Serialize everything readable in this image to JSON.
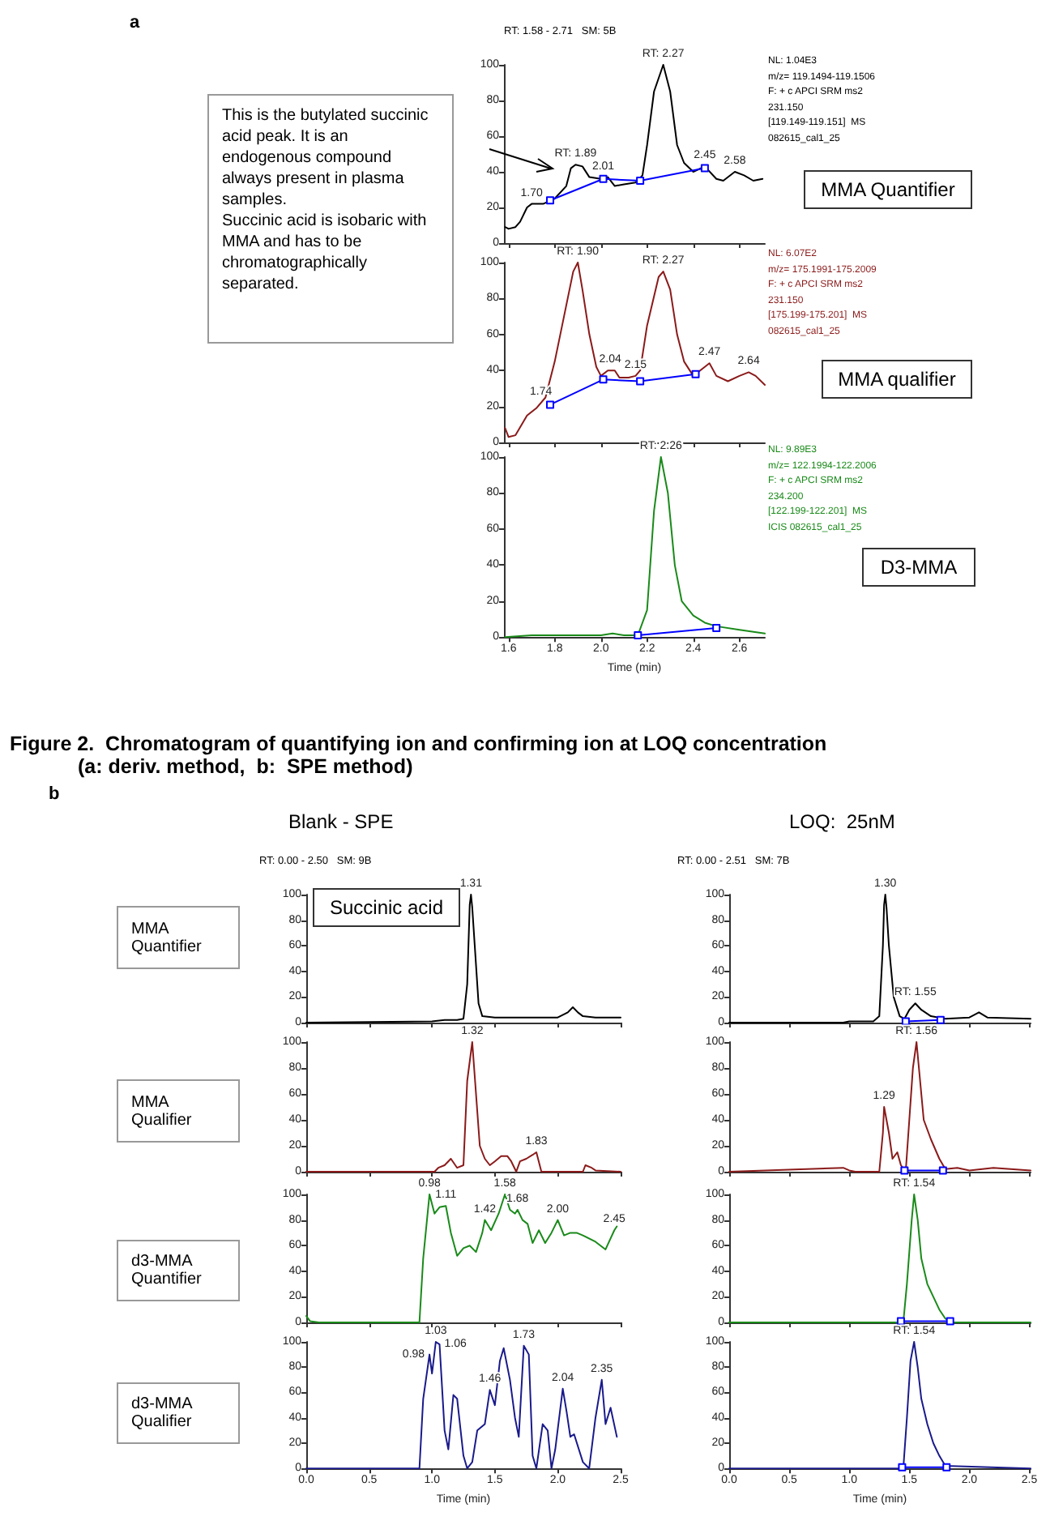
{
  "chart_data": [
    {
      "type": "line",
      "xlim": [
        1.58,
        2.71
      ],
      "xticks": [
        {
          "value": 1.6,
          "label": null
        },
        {
          "value": 1.8,
          "label": null
        },
        {
          "value": 2,
          "label": null
        },
        {
          "value": 2.2,
          "label": null
        },
        {
          "value": 2.4,
          "label": null
        },
        {
          "value": 2.6,
          "label": null
        }
      ],
      "ylim": [
        0,
        100
      ],
      "yticks": [
        0,
        20,
        40,
        60,
        80,
        100
      ],
      "tick_labels": "y",
      "series": [
        {
          "color": "#000000",
          "marker": "none",
          "x": [
            1.585,
            1.6,
            1.63,
            1.65,
            1.68,
            1.7,
            1.75,
            1.8,
            1.85,
            1.87,
            1.89,
            1.92,
            1.95,
            2.0,
            2.03,
            2.06,
            2.1,
            2.15,
            2.18,
            2.2,
            2.23,
            2.27,
            2.3,
            2.33,
            2.36,
            2.4,
            2.45,
            2.5,
            2.53,
            2.58,
            2.62,
            2.66,
            2.7
          ],
          "values": [
            9,
            8,
            9,
            12,
            20,
            22,
            22,
            25,
            32,
            42,
            44,
            43,
            37,
            36,
            37,
            32,
            33,
            34,
            38,
            55,
            85,
            100,
            85,
            55,
            45,
            40,
            43,
            36,
            35,
            40,
            38,
            35,
            36
          ]
        },
        {
          "color": "#0000ff",
          "marker": "square",
          "x": [
            1.78,
            2.01,
            2.17,
            2.45
          ],
          "values": [
            24,
            36,
            35,
            42
          ]
        }
      ],
      "annotations": [
        "a",
        "RT: 1.58 - 2.71   SM: 5B",
        "NL: 1.04E3\nm/z= 119.1494-119.1506\nF: + c APCI SRM ms2\n231.150\n[119.149-119.151]  MS\n082615_cal1_25",
        "MMA Quantifier",
        "This is the butylated succinic acid peak. It is an endogenous  compound always present in plasma samples.\nSuccinic acid is isobaric with MMA and has to be chromatographically separated.",
        {
          "text": "RT: 2.27",
          "x": 2.27,
          "y": 100
        },
        {
          "text": "RT: 1.89",
          "x": 1.89,
          "y": 44
        },
        {
          "text": "1.70",
          "x": 1.7,
          "y": 22
        },
        {
          "text": "2.01",
          "x": 2.01,
          "y": 37
        },
        {
          "text": "2.45",
          "x": 2.45,
          "y": 43
        },
        {
          "text": "2.58",
          "x": 2.58,
          "y": 40
        }
      ]
    },
    {
      "type": "line",
      "xlim": [
        1.58,
        2.71
      ],
      "xticks": [
        {
          "value": 1.6,
          "label": null
        },
        {
          "value": 1.8,
          "label": null
        },
        {
          "value": 2,
          "label": null
        },
        {
          "value": 2.2,
          "label": null
        },
        {
          "value": 2.4,
          "label": null
        },
        {
          "value": 2.6,
          "label": null
        }
      ],
      "ylim": [
        0,
        100
      ],
      "yticks": [
        0,
        20,
        40,
        60,
        80,
        100
      ],
      "tick_labels": "y",
      "series": [
        {
          "color": "#8b1a1a",
          "marker": "none",
          "x": [
            1.585,
            1.6,
            1.63,
            1.68,
            1.72,
            1.76,
            1.8,
            1.84,
            1.88,
            1.9,
            1.92,
            1.95,
            1.98,
            2.0,
            2.03,
            2.06,
            2.08,
            2.12,
            2.15,
            2.17,
            2.2,
            2.25,
            2.27,
            2.3,
            2.33,
            2.36,
            2.4,
            2.45,
            2.47,
            2.5,
            2.55,
            2.6,
            2.64,
            2.67,
            2.71
          ],
          "values": [
            8,
            3,
            4,
            15,
            19,
            25,
            45,
            70,
            95,
            100,
            85,
            60,
            42,
            37,
            40,
            40,
            36,
            36,
            37,
            40,
            65,
            92,
            95,
            85,
            60,
            45,
            37,
            42,
            44,
            37,
            34,
            37,
            39,
            37,
            32
          ]
        },
        {
          "color": "#0000ff",
          "marker": "square",
          "x": [
            1.78,
            2.01,
            2.17,
            2.41
          ],
          "values": [
            21,
            35,
            34,
            38
          ]
        }
      ],
      "annotations": [
        "NL: 6.07E2\nm/z= 175.1991-175.2009\nF: + c APCI SRM ms2\n231.150\n[175.199-175.201]  MS\n082615_cal1_25",
        "MMA qualifier",
        {
          "text": "RT: 1.90",
          "x": 1.9,
          "y": 100
        },
        {
          "text": "RT: 2.27",
          "x": 2.27,
          "y": 95
        },
        {
          "text": "1.74",
          "x": 1.74,
          "y": 22
        },
        {
          "text": "2.04",
          "x": 2.04,
          "y": 40
        },
        {
          "text": "2.15",
          "x": 2.15,
          "y": 37
        },
        {
          "text": "2.47",
          "x": 2.47,
          "y": 44
        },
        {
          "text": "2.64",
          "x": 2.64,
          "y": 39
        }
      ]
    },
    {
      "type": "line",
      "xlim": [
        1.58,
        2.71
      ],
      "xticks": [
        1.6,
        1.8,
        {
          "value": 2,
          "label": "2.0"
        },
        2.2,
        2.4,
        2.6
      ],
      "ylim": [
        0,
        100
      ],
      "yticks": [
        0,
        20,
        40,
        60,
        80,
        100
      ],
      "xlabel": "Time (min)",
      "series": [
        {
          "color": "#1a8a1a",
          "marker": "none",
          "x": [
            1.585,
            1.7,
            1.8,
            2.0,
            2.05,
            2.1,
            2.16,
            2.2,
            2.23,
            2.26,
            2.29,
            2.32,
            2.35,
            2.4,
            2.45,
            2.5,
            2.6,
            2.71
          ],
          "values": [
            0,
            1,
            1,
            1,
            2,
            1,
            1,
            15,
            70,
            100,
            80,
            40,
            20,
            12,
            8,
            6,
            4,
            2
          ]
        },
        {
          "color": "#0000ff",
          "marker": "square",
          "x": [
            2.16,
            2.5
          ],
          "values": [
            1,
            5
          ]
        }
      ],
      "annotations": [
        "NL: 9.89E3\nm/z= 122.1994-122.2006\nF: + c APCI SRM ms2\n234.200\n[122.199-122.201]  MS\nICIS 082615_cal1_25",
        "D3-MMA",
        {
          "text": "RT: 2.26",
          "x": 2.26,
          "y": 100
        }
      ]
    },
    {
      "type": "line",
      "xlim": [
        0,
        2.5
      ],
      "xticks": [
        {
          "value": 0,
          "label": null
        },
        {
          "value": 0.5,
          "label": null
        },
        {
          "value": 1,
          "label": null
        },
        {
          "value": 1.5,
          "label": null
        },
        {
          "value": 2,
          "label": null
        },
        {
          "value": 2.5,
          "label": null
        }
      ],
      "ylim": [
        0,
        100
      ],
      "yticks": [
        0,
        20,
        40,
        60,
        80,
        100
      ],
      "tick_labels": "y",
      "series": [
        {
          "color": "#000000",
          "marker": "none",
          "x": [
            0,
            1.0,
            1.1,
            1.2,
            1.25,
            1.28,
            1.3,
            1.31,
            1.32,
            1.34,
            1.37,
            1.4,
            1.5,
            1.7,
            1.9,
            2.0,
            2.08,
            2.12,
            2.16,
            2.2,
            2.3,
            2.5
          ],
          "values": [
            0,
            1,
            2,
            2,
            3,
            30,
            92,
            100,
            90,
            60,
            15,
            5,
            4,
            4,
            4,
            4,
            8,
            12,
            8,
            5,
            4,
            4
          ]
        }
      ],
      "annotations": [
        "Figure 2.  Chromatogram of quantifying ion and confirming ion at LOQ concentration\n(a: deriv. method,  b:  SPE method)",
        "b",
        "Blank - SPE",
        "RT: 0.00 - 2.50   SM: 9B",
        "MMA\nQuantifier",
        "Succinic acid",
        {
          "text": "1.31",
          "x": 1.31,
          "y": 100
        }
      ]
    },
    {
      "type": "line",
      "xlim": [
        0,
        2.5
      ],
      "xticks": [
        {
          "value": 0,
          "label": null
        },
        {
          "value": 0.5,
          "label": null
        },
        {
          "value": 1,
          "label": null
        },
        {
          "value": 1.5,
          "label": null
        },
        {
          "value": 2,
          "label": null
        },
        {
          "value": 2.5,
          "label": null
        }
      ],
      "ylim": [
        0,
        100
      ],
      "yticks": [
        0,
        20,
        40,
        60,
        80,
        100
      ],
      "tick_labels": "y",
      "series": [
        {
          "color": "#8b1a1a",
          "marker": "none",
          "x": [
            0,
            1.02,
            1.05,
            1.1,
            1.15,
            1.2,
            1.25,
            1.28,
            1.32,
            1.35,
            1.38,
            1.42,
            1.46,
            1.5,
            1.55,
            1.6,
            1.63,
            1.67,
            1.7,
            1.75,
            1.8,
            1.83,
            1.87,
            2.0,
            2.2,
            2.22,
            2.27,
            2.3,
            2.5
          ],
          "values": [
            0,
            0,
            3,
            5,
            10,
            3,
            5,
            70,
            100,
            60,
            20,
            10,
            5,
            8,
            12,
            12,
            8,
            0,
            8,
            10,
            13,
            15,
            0,
            0,
            0,
            5,
            3,
            1,
            0
          ]
        }
      ],
      "annotations": [
        "MMA\nQualifier",
        {
          "text": "1.32",
          "x": 1.32,
          "y": 100
        },
        {
          "text": "1.83",
          "x": 1.83,
          "y": 15
        }
      ]
    },
    {
      "type": "line",
      "xlim": [
        0,
        2.5
      ],
      "xticks": [
        {
          "value": 0,
          "label": null
        },
        {
          "value": 0.5,
          "label": null
        },
        {
          "value": 1,
          "label": null
        },
        {
          "value": 1.5,
          "label": null
        },
        {
          "value": 2,
          "label": null
        },
        {
          "value": 2.5,
          "label": null
        }
      ],
      "ylim": [
        0,
        100
      ],
      "yticks": [
        0,
        20,
        40,
        60,
        80,
        100
      ],
      "tick_labels": "y",
      "series": [
        {
          "color": "#1a8a1a",
          "marker": "none",
          "x": [
            0,
            0.03,
            0.1,
            0.9,
            0.93,
            0.98,
            1.02,
            1.06,
            1.11,
            1.15,
            1.2,
            1.25,
            1.3,
            1.35,
            1.4,
            1.42,
            1.47,
            1.53,
            1.58,
            1.62,
            1.66,
            1.68,
            1.72,
            1.76,
            1.8,
            1.85,
            1.9,
            1.95,
            2.0,
            2.05,
            2.1,
            2.15,
            2.2,
            2.3,
            2.38,
            2.45,
            2.47
          ],
          "values": [
            5,
            1,
            0,
            0,
            50,
            100,
            85,
            90,
            91,
            70,
            52,
            58,
            60,
            55,
            70,
            80,
            72,
            85,
            100,
            88,
            85,
            88,
            80,
            77,
            62,
            72,
            62,
            70,
            80,
            68,
            70,
            70,
            68,
            63,
            57,
            72,
            75
          ]
        }
      ],
      "annotations": [
        "d3-MMA\nQuantifier",
        {
          "text": "0.98",
          "x": 0.98,
          "y": 100
        },
        {
          "text": "1.11",
          "x": 1.11,
          "y": 91
        },
        {
          "text": "1.42",
          "x": 1.42,
          "y": 80
        },
        {
          "text": "1.58",
          "x": 1.58,
          "y": 100
        },
        {
          "text": "1.68",
          "x": 1.68,
          "y": 88
        },
        {
          "text": "2.00",
          "x": 2.0,
          "y": 80
        },
        {
          "text": "2.45",
          "x": 2.45,
          "y": 72
        }
      ]
    },
    {
      "type": "line",
      "xlim": [
        0,
        2.5
      ],
      "xticks": [
        {
          "value": 0,
          "label": "0.0"
        },
        0.5,
        {
          "value": 1,
          "label": "1.0"
        },
        1.5,
        {
          "value": 2,
          "label": "2.0"
        },
        2.5
      ],
      "ylim": [
        0,
        100
      ],
      "yticks": [
        0,
        20,
        40,
        60,
        80,
        100
      ],
      "xlabel": "Time (min)",
      "series": [
        {
          "color": "#1a1a8c",
          "marker": "none",
          "x": [
            0,
            0.9,
            0.93,
            0.98,
            1.0,
            1.03,
            1.06,
            1.1,
            1.13,
            1.17,
            1.2,
            1.25,
            1.28,
            1.32,
            1.36,
            1.42,
            1.46,
            1.5,
            1.54,
            1.57,
            1.62,
            1.66,
            1.69,
            1.73,
            1.77,
            1.8,
            1.83,
            1.88,
            1.92,
            1.95,
            1.98,
            2.04,
            2.07,
            2.1,
            2.13,
            2.2,
            2.25,
            2.3,
            2.35,
            2.38,
            2.42,
            2.47
          ],
          "values": [
            0,
            0,
            55,
            90,
            75,
            100,
            98,
            30,
            15,
            58,
            55,
            10,
            0,
            5,
            30,
            35,
            62,
            50,
            85,
            95,
            70,
            40,
            25,
            97,
            90,
            10,
            0,
            35,
            30,
            0,
            15,
            63,
            45,
            25,
            27,
            5,
            0,
            40,
            70,
            35,
            48,
            25
          ]
        }
      ],
      "annotations": [
        "d3-MMA\nQualifier",
        {
          "text": "0.98",
          "x": 0.98,
          "y": 90
        },
        {
          "text": "1.03",
          "x": 1.03,
          "y": 100
        },
        {
          "text": "1.06",
          "x": 1.06,
          "y": 98
        },
        {
          "text": "1.46",
          "x": 1.46,
          "y": 62
        },
        {
          "text": "1.73",
          "x": 1.73,
          "y": 97
        },
        {
          "text": "2.04",
          "x": 2.04,
          "y": 63
        },
        {
          "text": "2.35",
          "x": 2.35,
          "y": 70
        }
      ]
    },
    {
      "type": "line",
      "xlim": [
        0,
        2.51
      ],
      "xticks": [
        {
          "value": 0,
          "label": null
        },
        {
          "value": 0.5,
          "label": null
        },
        {
          "value": 1,
          "label": null
        },
        {
          "value": 1.5,
          "label": null
        },
        {
          "value": 2,
          "label": null
        },
        {
          "value": 2.5,
          "label": null
        }
      ],
      "ylim": [
        0,
        100
      ],
      "yticks": [
        0,
        20,
        40,
        60,
        80,
        100
      ],
      "tick_labels": "y",
      "series": [
        {
          "color": "#000000",
          "marker": "none",
          "x": [
            0,
            0.95,
            1.0,
            1.2,
            1.25,
            1.28,
            1.29,
            1.3,
            1.31,
            1.33,
            1.37,
            1.42,
            1.46,
            1.5,
            1.55,
            1.6,
            1.68,
            1.8,
            2.0,
            2.08,
            2.15,
            2.51
          ],
          "values": [
            0,
            0,
            1,
            1,
            5,
            60,
            92,
            100,
            90,
            60,
            20,
            5,
            3,
            10,
            15,
            10,
            5,
            3,
            4,
            8,
            4,
            3
          ]
        },
        {
          "color": "#0000ff",
          "marker": "square",
          "x": [
            1.47,
            1.76
          ],
          "values": [
            1,
            2
          ]
        }
      ],
      "annotations": [
        "LOQ:  25nM",
        "RT: 0.00 - 2.51   SM: 7B",
        {
          "text": "1.30",
          "x": 1.3,
          "y": 100
        },
        {
          "text": "RT: 1.55",
          "x": 1.55,
          "y": 15
        }
      ]
    },
    {
      "type": "line",
      "xlim": [
        0,
        2.51
      ],
      "xticks": [
        {
          "value": 0,
          "label": null
        },
        {
          "value": 0.5,
          "label": null
        },
        {
          "value": 1,
          "label": null
        },
        {
          "value": 1.5,
          "label": null
        },
        {
          "value": 2,
          "label": null
        },
        {
          "value": 2.5,
          "label": null
        }
      ],
      "ylim": [
        0,
        100
      ],
      "yticks": [
        0,
        20,
        40,
        60,
        80,
        100
      ],
      "tick_labels": "y",
      "series": [
        {
          "color": "#8b1a1a",
          "marker": "none",
          "x": [
            0,
            0.95,
            1.0,
            1.05,
            1.25,
            1.28,
            1.29,
            1.33,
            1.36,
            1.4,
            1.43,
            1.47,
            1.5,
            1.53,
            1.56,
            1.58,
            1.62,
            1.68,
            1.75,
            1.8,
            1.9,
            2.0,
            2.2,
            2.51
          ],
          "values": [
            0,
            3,
            1,
            0,
            0,
            30,
            50,
            30,
            10,
            15,
            5,
            0,
            40,
            80,
            100,
            80,
            40,
            25,
            10,
            2,
            3,
            1,
            3,
            1
          ]
        },
        {
          "color": "#0000ff",
          "marker": "square",
          "x": [
            1.46,
            1.78
          ],
          "values": [
            1,
            1
          ]
        }
      ],
      "annotations": [
        {
          "text": "RT: 1.56",
          "x": 1.56,
          "y": 100
        },
        {
          "text": "1.29",
          "x": 1.29,
          "y": 50
        }
      ]
    },
    {
      "type": "line",
      "xlim": [
        0,
        2.51
      ],
      "xticks": [
        {
          "value": 0,
          "label": null
        },
        {
          "value": 0.5,
          "label": null
        },
        {
          "value": 1,
          "label": null
        },
        {
          "value": 1.5,
          "label": null
        },
        {
          "value": 2,
          "label": null
        },
        {
          "value": 2.5,
          "label": null
        }
      ],
      "ylim": [
        0,
        100
      ],
      "yticks": [
        0,
        20,
        40,
        60,
        80,
        100
      ],
      "tick_labels": "y",
      "series": [
        {
          "color": "#1a8a1a",
          "marker": "none",
          "x": [
            0,
            1.45,
            1.48,
            1.52,
            1.54,
            1.57,
            1.6,
            1.65,
            1.7,
            1.75,
            1.8,
            1.85,
            2.51
          ],
          "values": [
            0,
            0,
            30,
            80,
            100,
            80,
            50,
            30,
            20,
            10,
            3,
            0,
            0
          ]
        },
        {
          "color": "#0000ff",
          "marker": "square",
          "x": [
            1.43,
            1.84
          ],
          "values": [
            1,
            1
          ]
        }
      ],
      "annotations": [
        {
          "text": "RT: 1.54",
          "x": 1.54,
          "y": 100
        }
      ]
    },
    {
      "type": "line",
      "xlim": [
        0,
        2.51
      ],
      "xticks": [
        {
          "value": 0,
          "label": "0.0"
        },
        0.5,
        {
          "value": 1,
          "label": "1.0"
        },
        1.5,
        {
          "value": 2,
          "label": "2.0"
        },
        2.5
      ],
      "ylim": [
        0,
        100
      ],
      "yticks": [
        0,
        20,
        40,
        60,
        80,
        100
      ],
      "xlabel": "Time (min)",
      "series": [
        {
          "color": "#1a1a8c",
          "marker": "none",
          "x": [
            0,
            1.45,
            1.48,
            1.51,
            1.54,
            1.57,
            1.6,
            1.65,
            1.7,
            1.75,
            1.8,
            2.51
          ],
          "values": [
            0,
            0,
            40,
            85,
            100,
            80,
            55,
            35,
            20,
            10,
            2,
            0
          ]
        },
        {
          "color": "#0000ff",
          "marker": "square",
          "x": [
            1.44,
            1.81
          ],
          "values": [
            1,
            1
          ]
        }
      ],
      "annotations": [
        {
          "text": "RT: 1.54",
          "x": 1.54,
          "y": 100
        }
      ]
    }
  ]
}
